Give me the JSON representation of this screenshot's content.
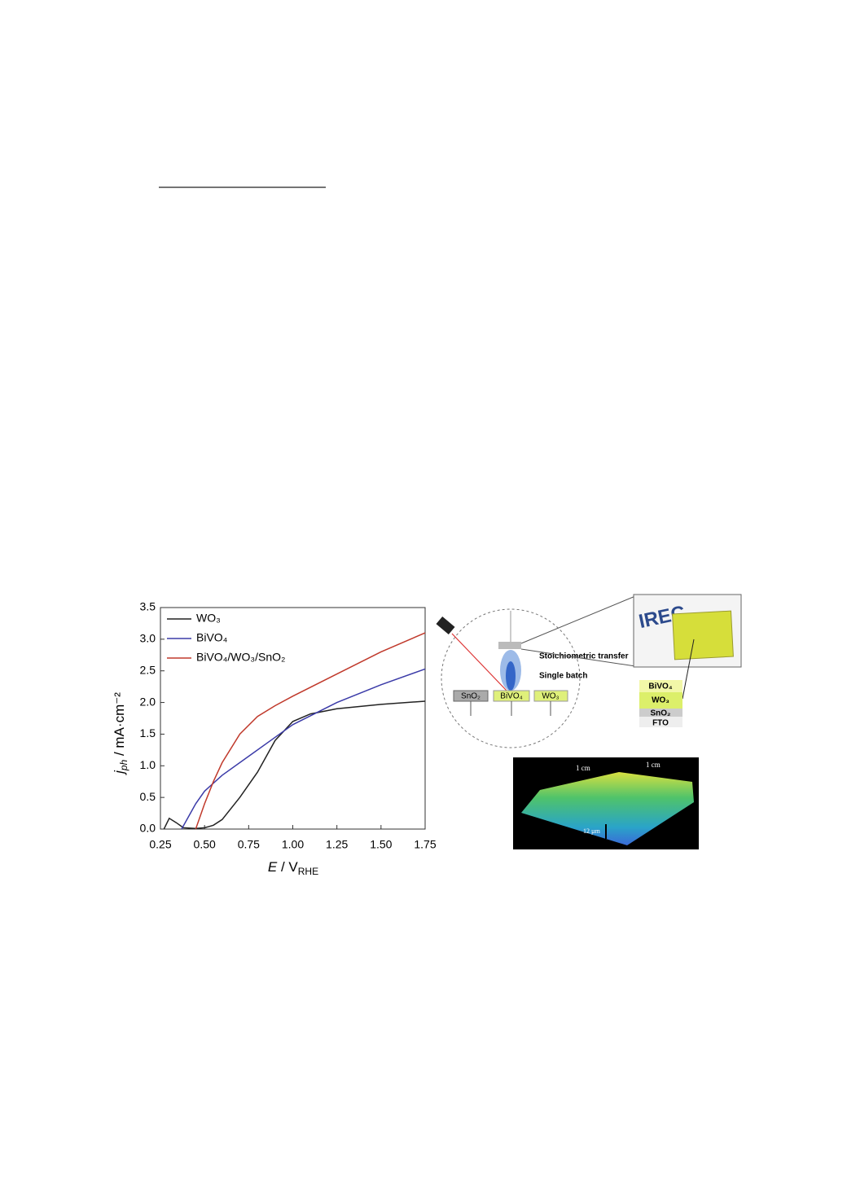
{
  "chart_data": {
    "type": "line",
    "x_label": {
      "symbol": "E",
      "unit": " / V",
      "sub": "RHE"
    },
    "y_label": {
      "symbol": "j",
      "sub": "ph",
      "unit": " / mA·cm⁻²"
    },
    "xlim": [
      0.25,
      1.75
    ],
    "xticks": [
      0.25,
      {
        "value": 0.5,
        "label": "0.50"
      },
      0.75,
      {
        "value": 1,
        "label": "1.00"
      },
      1.25,
      {
        "value": 1.5,
        "label": "1.50"
      },
      1.75
    ],
    "ylim": [
      0,
      3.5
    ],
    "yticks": [
      {
        "value": 0,
        "label": "0.0"
      },
      0.5,
      {
        "value": 1,
        "label": "1.0"
      },
      1.5,
      {
        "value": 2,
        "label": "2.0"
      },
      2.5,
      {
        "value": 3,
        "label": "3.0"
      },
      3.5
    ],
    "legend": "top-left",
    "series": [
      {
        "name": "WO₃",
        "color": "#222222",
        "x": [
          0.27,
          0.3,
          0.34,
          0.38,
          0.45,
          0.5,
          0.55,
          0.6,
          0.7,
          0.8,
          0.9,
          1.0,
          1.1,
          1.25,
          1.5,
          1.75
        ],
        "values": [
          0.0,
          0.17,
          0.1,
          0.02,
          0.01,
          0.02,
          0.06,
          0.15,
          0.5,
          0.9,
          1.4,
          1.7,
          1.82,
          1.9,
          1.97,
          2.02
        ]
      },
      {
        "name": "BiVO₄",
        "color": "#3b3ba8",
        "x": [
          0.37,
          0.45,
          0.5,
          0.6,
          0.75,
          0.9,
          1.0,
          1.25,
          1.5,
          1.75
        ],
        "values": [
          0.0,
          0.4,
          0.6,
          0.85,
          1.15,
          1.45,
          1.65,
          2.0,
          2.28,
          2.53
        ]
      },
      {
        "name": "BiVO₄/WO₃/SnO₂",
        "color": "#c0392b",
        "x": [
          0.45,
          0.5,
          0.55,
          0.6,
          0.7,
          0.8,
          0.9,
          1.0,
          1.25,
          1.5,
          1.75
        ],
        "values": [
          0.0,
          0.4,
          0.75,
          1.05,
          1.5,
          1.78,
          1.95,
          2.1,
          2.45,
          2.8,
          3.1
        ]
      }
    ]
  },
  "figure": {
    "schematic": {
      "transfer": "Stoichiometric transfer",
      "batch": "Single batch",
      "targets": [
        "SnO₂",
        "BiVO₄",
        "WO₃"
      ],
      "logo": "IREC",
      "layers": [
        "BiVO₄",
        "WO₃",
        "SnO₂",
        "FTO"
      ]
    },
    "profile": {
      "width_a": "1 cm",
      "width_b": "1 cm",
      "height": "12 µm"
    }
  }
}
